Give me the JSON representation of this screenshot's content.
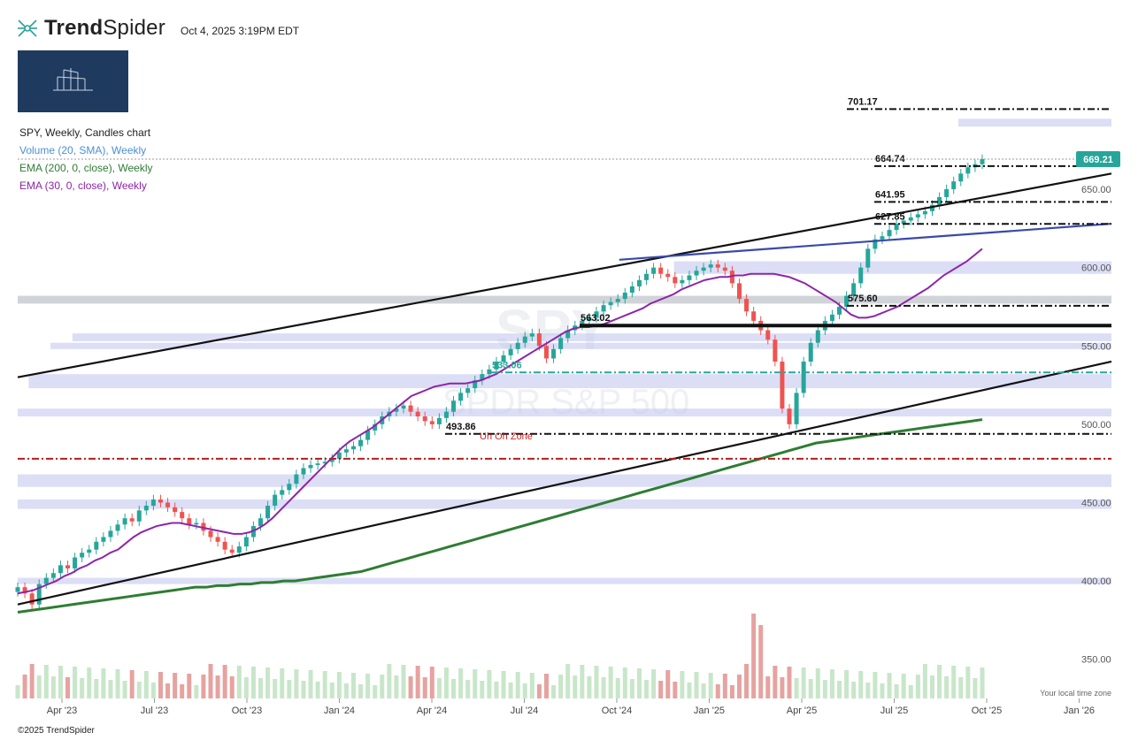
{
  "header": {
    "brand_bold": "Trend",
    "brand_light": "Spider",
    "timestamp": "Oct 4, 2025 3:19PM EDT"
  },
  "legend": {
    "title": "SPY, Weekly, Candles chart",
    "items": [
      {
        "label": "Volume (20, SMA), Weekly",
        "color": "#4a8fd8"
      },
      {
        "label": "EMA (200, 0, close), Weekly",
        "color": "#2e7d32"
      },
      {
        "label": "EMA (30, 0, close), Weekly",
        "color": "#8e24aa"
      }
    ]
  },
  "watermark": {
    "ticker": "SPY",
    "name": "SPDR S&P 500"
  },
  "footer": {
    "copyright": "©2025 TrendSpider",
    "local_zone": "Your local time zone"
  },
  "current_price": {
    "value": "669.21",
    "color": "#26a69a"
  },
  "colors": {
    "up": "#26a69a",
    "down": "#ef5350",
    "ema200": "#2e7d32",
    "ema30": "#8e24aa",
    "zone": "#c5c8f0",
    "vol_up": "#c8e6c9",
    "vol_down": "#e5a3a0"
  },
  "chart_data": {
    "type": "candlestick",
    "timeframe": "Weekly",
    "symbol": "SPY",
    "ylim": [
      325,
      720
    ],
    "y_ticks": [
      "350.00",
      "400.00",
      "450.00",
      "500.00",
      "550.00",
      "600.00",
      "650.00"
    ],
    "x_ticks": [
      "Apr '23",
      "Jul '23",
      "Oct '23",
      "Jan '24",
      "Apr '24",
      "Jul '24",
      "Oct '24",
      "Jan '25",
      "Apr '25",
      "Jul '25",
      "Oct '25",
      "Jan '26"
    ],
    "levels": [
      {
        "label": "701.17",
        "value": 701.17,
        "style": "dashdot",
        "color": "#111111"
      },
      {
        "label": "664.74",
        "value": 664.74,
        "style": "dashdot",
        "color": "#111111"
      },
      {
        "label": "641.95",
        "value": 641.95,
        "style": "dashdot",
        "color": "#111111"
      },
      {
        "label": "627.85",
        "value": 627.85,
        "style": "dashdot",
        "color": "#111111"
      },
      {
        "label": "575.60",
        "value": 575.6,
        "style": "dashdot",
        "color": "#111111"
      },
      {
        "label": "563.02",
        "value": 563.02,
        "style": "solid",
        "color": "#111111"
      },
      {
        "label": "533.06",
        "value": 533.06,
        "style": "dashdot",
        "color": "#26a69a"
      },
      {
        "label": "493.86",
        "value": 493.86,
        "style": "dashdot",
        "color": "#111111"
      },
      {
        "label": "",
        "value": 478,
        "style": "dashdot",
        "color": "#b71c1c"
      }
    ],
    "annotations": [
      {
        "text": "Uh Oh Zone",
        "value": 493.86
      }
    ],
    "weekly_closes_approx": [
      396,
      392,
      385,
      398,
      402,
      405,
      410,
      408,
      415,
      418,
      420,
      425,
      428,
      432,
      436,
      440,
      438,
      445,
      448,
      452,
      450,
      447,
      444,
      440,
      436,
      437,
      432,
      428,
      425,
      420,
      418,
      422,
      428,
      435,
      440,
      448,
      455,
      458,
      462,
      468,
      472,
      474,
      475,
      476,
      478,
      482,
      484,
      486,
      490,
      496,
      500,
      505,
      508,
      510,
      512,
      508,
      505,
      502,
      500,
      504,
      508,
      515,
      520,
      523,
      528,
      532,
      535,
      540,
      544,
      548,
      552,
      556,
      558,
      550,
      542,
      548,
      555,
      560,
      563,
      566,
      568,
      572,
      576,
      578,
      580,
      584,
      588,
      592,
      596,
      600,
      596,
      594,
      590,
      592,
      595,
      598,
      600,
      602,
      600,
      598,
      590,
      580,
      572,
      566,
      560,
      554,
      540,
      510,
      500,
      520,
      540,
      552,
      560,
      566,
      570,
      575,
      582,
      590,
      600,
      612,
      618,
      620,
      624,
      628,
      630,
      632,
      634,
      636,
      640,
      645,
      650,
      655,
      660,
      664,
      666,
      669.21
    ],
    "ema30_approx": [
      392,
      393,
      394,
      396,
      398,
      400,
      403,
      405,
      408,
      410,
      413,
      415,
      418,
      420,
      424,
      428,
      431,
      433,
      435,
      436,
      437,
      437,
      436,
      435,
      434,
      433,
      432,
      431,
      430,
      430,
      431,
      433,
      436,
      440,
      445,
      450,
      455,
      460,
      465,
      470,
      475,
      480,
      485,
      489,
      492,
      495,
      498,
      502,
      506,
      510,
      514,
      518,
      520,
      522,
      524,
      525,
      526,
      526,
      526,
      527,
      528,
      530,
      532,
      535,
      538,
      541,
      544,
      547,
      550,
      553,
      556,
      559,
      561,
      562,
      562,
      563,
      564,
      566,
      568,
      570,
      572,
      574,
      577,
      579,
      581,
      583,
      586,
      588,
      590,
      592,
      593,
      594,
      594,
      595,
      595,
      596,
      596,
      596,
      596,
      595,
      594,
      592,
      590,
      587,
      584,
      581,
      578,
      574,
      570,
      568,
      568,
      569,
      571,
      573,
      575,
      578,
      581,
      584,
      587,
      591,
      595,
      598,
      601,
      604,
      608,
      612
    ],
    "ema200_approx": [
      380,
      381,
      382,
      383,
      384,
      385,
      386,
      387,
      388,
      389,
      390,
      391,
      392,
      393,
      394,
      395,
      396,
      396,
      397,
      397,
      398,
      398,
      399,
      399,
      400,
      400,
      401,
      402,
      403,
      404,
      405,
      406,
      408,
      410,
      412,
      414,
      416,
      418,
      420,
      422,
      424,
      426,
      428,
      430,
      432,
      434,
      436,
      438,
      440,
      442,
      444,
      446,
      448,
      450,
      452,
      454,
      456,
      458,
      460,
      462,
      464,
      466,
      468,
      470,
      472,
      474,
      476,
      478,
      480,
      482,
      484,
      486,
      488,
      489,
      490,
      491,
      492,
      493,
      494,
      495,
      496,
      497,
      498,
      499,
      500,
      501,
      502,
      503
    ],
    "trendlines": [
      {
        "from": [
          0,
          530
        ],
        "to": [
          1,
          660
        ],
        "color": "#111111"
      },
      {
        "from": [
          0,
          385
        ],
        "to": [
          1,
          540
        ],
        "color": "#111111"
      },
      {
        "from": [
          0.55,
          605
        ],
        "to": [
          1,
          628
        ],
        "color": "#3949ab"
      }
    ]
  }
}
